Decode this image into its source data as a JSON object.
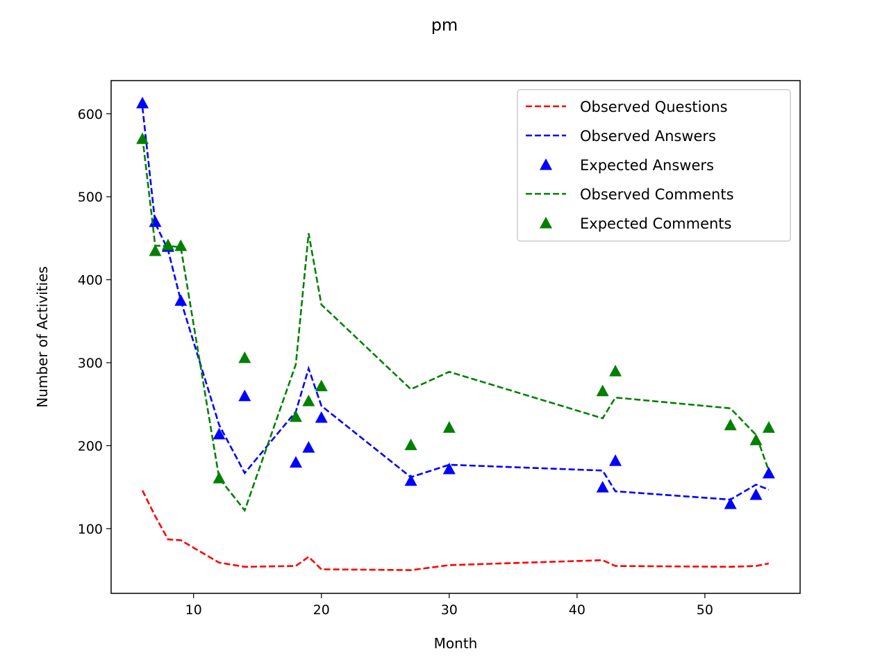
{
  "chart_data": {
    "type": "line",
    "title": "pm",
    "xlabel": "Month",
    "ylabel": "Number of Activities",
    "xlim": [
      3.55,
      57.45
    ],
    "ylim": [
      22,
      640
    ],
    "xticks": [
      10,
      20,
      30,
      40,
      50
    ],
    "yticks": [
      100,
      200,
      300,
      400,
      500,
      600
    ],
    "grid": false,
    "legend_position": "top-right",
    "x": [
      6,
      7,
      8,
      9,
      12,
      14,
      18,
      19,
      20,
      27,
      30,
      42,
      43,
      52,
      54,
      55
    ],
    "series": [
      {
        "name": "Observed Questions",
        "style": "dashed-line",
        "color": "#ff0000",
        "values": [
          146,
          115,
          87,
          86,
          59,
          54,
          55,
          66,
          51,
          50,
          56,
          62,
          55,
          54,
          55,
          58
        ]
      },
      {
        "name": "Observed Answers",
        "style": "dashed-line",
        "color": "#0000ff",
        "values": [
          608,
          468,
          436,
          375,
          225,
          167,
          241,
          293,
          248,
          162,
          177,
          170,
          145,
          135,
          153,
          147
        ]
      },
      {
        "name": "Expected Answers",
        "style": "triangle-marker",
        "color": "#0000ff",
        "values": [
          613,
          470,
          440,
          375,
          214,
          260,
          180,
          198,
          234,
          158,
          172,
          150,
          182,
          130,
          141,
          167
        ]
      },
      {
        "name": "Observed Comments",
        "style": "dashed-line",
        "color": "#008000",
        "values": [
          572,
          441,
          441,
          439,
          161,
          122,
          298,
          456,
          370,
          268,
          289,
          233,
          258,
          245,
          213,
          170
        ]
      },
      {
        "name": "Expected Comments",
        "style": "triangle-marker",
        "color": "#008000",
        "values": [
          570,
          435,
          442,
          441,
          161,
          306,
          235,
          254,
          272,
          201,
          222,
          266,
          290,
          225,
          207,
          222
        ]
      }
    ]
  }
}
